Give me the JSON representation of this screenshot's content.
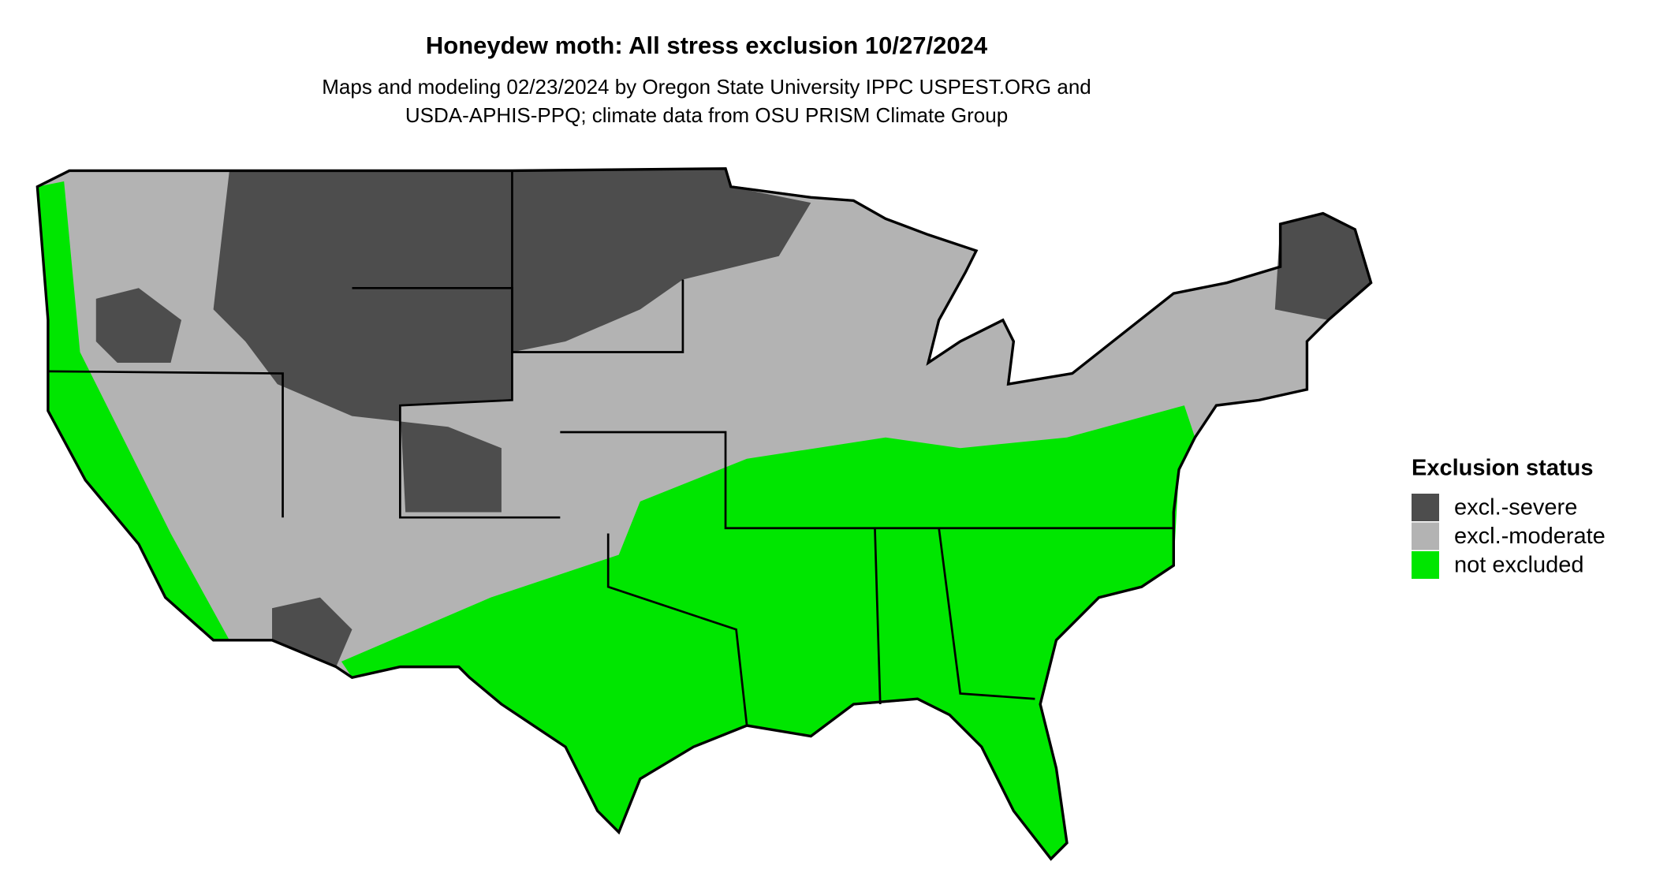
{
  "title": "Honeydew moth: All stress exclusion 10/27/2024",
  "subtitle": [
    "Maps and modeling 02/23/2024 by Oregon State University IPPC USPEST.ORG and",
    "USDA-APHIS-PPQ; climate data from OSU PRISM Climate Group"
  ],
  "legend": {
    "title": "Exclusion status",
    "items": [
      {
        "label": "excl.-severe",
        "color": "#4d4d4d"
      },
      {
        "label": "excl.-moderate",
        "color": "#b3b3b3"
      },
      {
        "label": "not excluded",
        "color": "#00e600"
      }
    ]
  }
}
